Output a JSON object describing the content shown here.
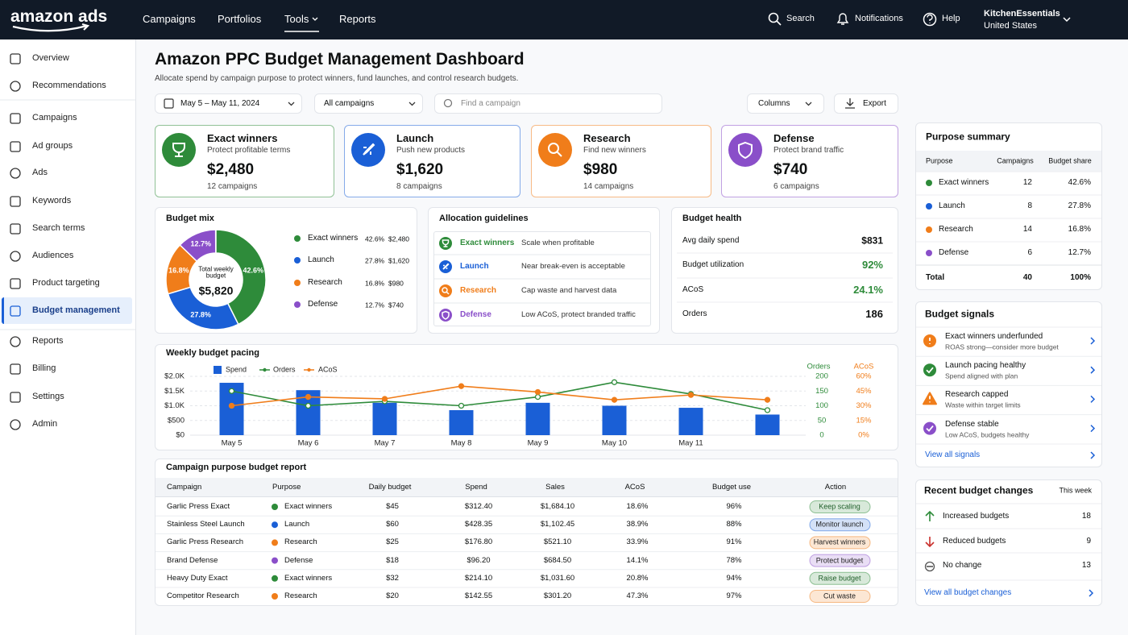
{
  "nav": {
    "brand": "amazon ads",
    "links": [
      "Campaigns",
      "Portfolios",
      "Tools",
      "Reports"
    ],
    "search": "Search",
    "notifications": "Notifications",
    "help": "Help",
    "account": "KitchenEssentials",
    "region": "United States"
  },
  "sidebar": [
    "Overview",
    "Recommendations",
    "Campaigns",
    "Ad groups",
    "Ads",
    "Keywords",
    "Search terms",
    "Audiences",
    "Product targeting",
    "Budget management",
    "Reports",
    "Billing",
    "Settings",
    "Admin"
  ],
  "header": {
    "title": "Amazon PPC Budget Management Dashboard",
    "subtitle": "Allocate spend by campaign purpose to protect winners, fund launches, and control research budgets."
  },
  "filters": {
    "date": "May 5 – May 11, 2024",
    "campaigns": "All campaigns",
    "search_placeholder": "Find a campaign",
    "columns": "Columns",
    "export": "Export"
  },
  "purpose_cards": [
    {
      "name": "Exact winners",
      "desc": "Protect profitable terms",
      "budget": "$2,480",
      "campaigns": "12 campaigns",
      "color": "#2e8b3a"
    },
    {
      "name": "Launch",
      "desc": "Push new products",
      "budget": "$1,620",
      "campaigns": "8 campaigns",
      "color": "#1a5fd6"
    },
    {
      "name": "Research",
      "desc": "Find new winners",
      "budget": "$980",
      "campaigns": "14 campaigns",
      "color": "#f07d1a"
    },
    {
      "name": "Defense",
      "desc": "Protect brand traffic",
      "budget": "$740",
      "campaigns": "6 campaigns",
      "color": "#8a4fc9"
    }
  ],
  "chart_data": [
    {
      "type": "pie",
      "title": "Budget mix",
      "center_label": "Total weekly budget",
      "center_value": "$5,820",
      "categories": [
        "Exact winners",
        "Launch",
        "Research",
        "Defense"
      ],
      "values": [
        42.6,
        27.8,
        16.8,
        12.7
      ],
      "value_labels": [
        "42.6%",
        "27.8%",
        "16.8%",
        "12.7%"
      ],
      "amounts": [
        "$2,480",
        "$1,620",
        "$980",
        "$740"
      ],
      "colors": [
        "#2e8b3a",
        "#1a5fd6",
        "#f07d1a",
        "#8a4fc9"
      ]
    },
    {
      "type": "bar",
      "title": "Weekly budget pacing",
      "categories": [
        "May 5",
        "May 6",
        "May 7",
        "May 8",
        "May 9",
        "May 10",
        "May 11",
        null
      ],
      "series": [
        {
          "name": "Spend",
          "color": "#1a5fd6",
          "values": [
            1780,
            1530,
            1100,
            850,
            1100,
            1000,
            930,
            700
          ]
        },
        {
          "name": "Orders",
          "color": "#2e8b3a",
          "type": "line",
          "axis": "y2",
          "values": [
            150,
            100,
            115,
            100,
            130,
            180,
            140,
            85
          ]
        },
        {
          "name": "ACoS",
          "color": "#f07d1a",
          "type": "line",
          "axis": "y3",
          "values": [
            30,
            39,
            37,
            50,
            44,
            36,
            41,
            36
          ]
        }
      ],
      "ylim": [
        0,
        2000
      ],
      "yticks": [
        {
          "value": 0,
          "label": "$0"
        },
        {
          "value": 500,
          "label": "$500"
        },
        {
          "value": 1000,
          "label": "$1.0K"
        },
        {
          "value": 1500,
          "label": "$1.5K"
        },
        {
          "value": 2000,
          "label": "$2.0K"
        }
      ],
      "y2label": "Orders",
      "y2lim": [
        0,
        200
      ],
      "y2ticks": [
        0,
        50,
        100,
        150,
        200
      ],
      "y3label": "ACoS",
      "y3lim": [
        0,
        60
      ],
      "y3ticks": [
        {
          "value": 0,
          "label": "0%"
        },
        {
          "value": 15,
          "label": "15%"
        },
        {
          "value": 30,
          "label": "30%"
        },
        {
          "value": 45,
          "label": "45%"
        },
        {
          "value": 60,
          "label": "60%"
        }
      ],
      "grid": true
    }
  ],
  "guidelines": {
    "title": "Allocation guidelines",
    "rows": [
      {
        "name": "Exact winners",
        "text": "Scale when profitable"
      },
      {
        "name": "Launch",
        "text": "Near break-even is acceptable"
      },
      {
        "name": "Research",
        "text": "Cap waste and harvest data"
      },
      {
        "name": "Defense",
        "text": "Low ACoS, protect branded traffic"
      }
    ]
  },
  "health": {
    "title": "Budget health",
    "rows": [
      {
        "label": "Avg daily spend",
        "value": "$831",
        "color": "#0f1111"
      },
      {
        "label": "Budget utilization",
        "value": "92%",
        "color": "#2e8b3a"
      },
      {
        "label": "ACoS",
        "value": "24.1%",
        "color": "#2e8b3a"
      },
      {
        "label": "Orders",
        "value": "186",
        "color": "#0f1111"
      }
    ]
  },
  "report": {
    "title": "Campaign purpose budget report",
    "columns": [
      "Campaign",
      "Purpose",
      "Daily budget",
      "Spend",
      "Sales",
      "ACoS",
      "Budget use",
      "Action"
    ],
    "rows": [
      [
        "Garlic Press Exact",
        "Exact winners",
        "$45",
        "$312.40",
        "$1,684.10",
        "18.6%",
        "96%",
        "Keep scaling"
      ],
      [
        "Stainless Steel Launch",
        "Launch",
        "$60",
        "$428.35",
        "$1,102.45",
        "38.9%",
        "88%",
        "Monitor launch"
      ],
      [
        "Garlic Press Research",
        "Research",
        "$25",
        "$176.80",
        "$521.10",
        "33.9%",
        "91%",
        "Harvest winners"
      ],
      [
        "Brand Defense",
        "Defense",
        "$18",
        "$96.20",
        "$684.50",
        "14.1%",
        "78%",
        "Protect budget"
      ],
      [
        "Heavy Duty Exact",
        "Exact winners",
        "$32",
        "$214.10",
        "$1,031.60",
        "20.8%",
        "94%",
        "Raise budget"
      ],
      [
        "Competitor Research",
        "Research",
        "$20",
        "$142.55",
        "$301.20",
        "47.3%",
        "97%",
        "Cut waste"
      ]
    ]
  },
  "summary": {
    "title": "Purpose summary",
    "columns": [
      "Purpose",
      "Campaigns",
      "Budget share"
    ],
    "rows": [
      [
        "Exact winners",
        "12",
        "42.6%"
      ],
      [
        "Launch",
        "8",
        "27.8%"
      ],
      [
        "Research",
        "14",
        "16.8%"
      ],
      [
        "Defense",
        "6",
        "12.7%"
      ]
    ],
    "total": [
      "Total",
      "40",
      "100%"
    ]
  },
  "signals": {
    "title": "Budget signals",
    "items": [
      {
        "title": "Exact winners underfunded",
        "desc": "ROAS strong—consider more budget",
        "icon": "alert",
        "color": "#f07d1a"
      },
      {
        "title": "Launch pacing healthy",
        "desc": "Spend aligned with plan",
        "icon": "check",
        "color": "#2e8b3a"
      },
      {
        "title": "Research capped",
        "desc": "Waste within target limits",
        "icon": "warning",
        "color": "#f07d1a"
      },
      {
        "title": "Defense stable",
        "desc": "Low ACoS, budgets healthy",
        "icon": "check",
        "color": "#8a4fc9"
      }
    ],
    "link": "View all signals"
  },
  "changes": {
    "title": "Recent budget changes",
    "period": "This week",
    "items": [
      {
        "label": "Increased budgets",
        "value": "18"
      },
      {
        "label": "Reduced budgets",
        "value": "9"
      },
      {
        "label": "No change",
        "value": "13"
      }
    ],
    "link": "View all budget changes"
  }
}
